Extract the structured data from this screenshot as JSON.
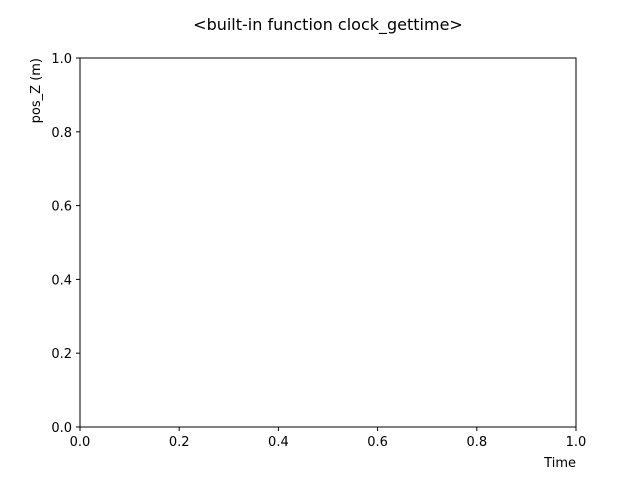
{
  "chart_data": {
    "type": "line",
    "title": "<built-in function clock_gettime>",
    "xlabel": "Time",
    "ylabel": "pos_Z (m)",
    "xlim": [
      0.0,
      1.0
    ],
    "ylim": [
      0.0,
      1.0
    ],
    "xticks": [
      "0.0",
      "0.2",
      "0.4",
      "0.6",
      "0.8",
      "1.0"
    ],
    "yticks": [
      "0.0",
      "0.2",
      "0.4",
      "0.6",
      "0.8",
      "1.0"
    ],
    "series": [],
    "grid": false,
    "legend": "none"
  }
}
